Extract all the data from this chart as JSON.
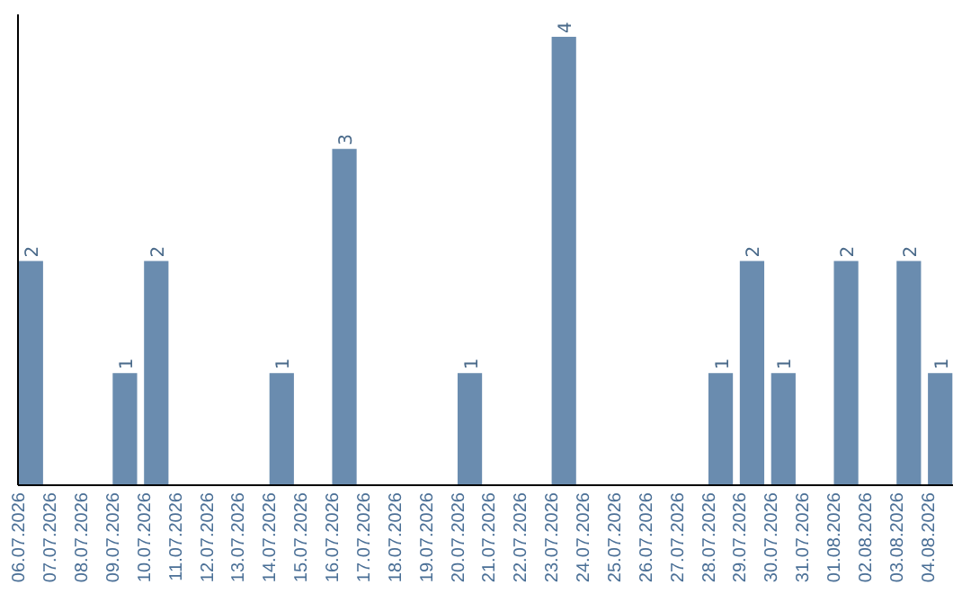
{
  "chart_data": {
    "type": "bar",
    "categories": [
      "06.07.2026",
      "07.07.2026",
      "08.07.2026",
      "09.07.2026",
      "10.07.2026",
      "11.07.2026",
      "12.07.2026",
      "13.07.2026",
      "14.07.2026",
      "15.07.2026",
      "16.07.2026",
      "17.07.2026",
      "18.07.2026",
      "19.07.2026",
      "20.07.2026",
      "21.07.2026",
      "22.07.2026",
      "23.07.2026",
      "24.07.2026",
      "25.07.2026",
      "26.07.2026",
      "27.07.2026",
      "28.07.2026",
      "29.07.2026",
      "30.07.2026",
      "31.07.2026",
      "01.08.2026",
      "02.08.2026",
      "03.08.2026",
      "04.08.2026"
    ],
    "values": [
      2,
      0,
      0,
      1,
      2,
      0,
      0,
      0,
      1,
      0,
      3,
      0,
      0,
      0,
      1,
      0,
      0,
      4,
      0,
      0,
      0,
      0,
      1,
      2,
      1,
      0,
      2,
      0,
      2,
      1
    ],
    "value_labels": [
      "2",
      null,
      null,
      "1",
      "2",
      null,
      null,
      null,
      "1",
      null,
      "3",
      null,
      null,
      null,
      "1",
      null,
      null,
      "4",
      null,
      null,
      null,
      null,
      "1",
      "2",
      "1",
      null,
      "2",
      null,
      "2",
      "1"
    ],
    "color": "#6a8caf",
    "ylim": [
      0,
      4.2
    ],
    "tick_labels": "x"
  }
}
